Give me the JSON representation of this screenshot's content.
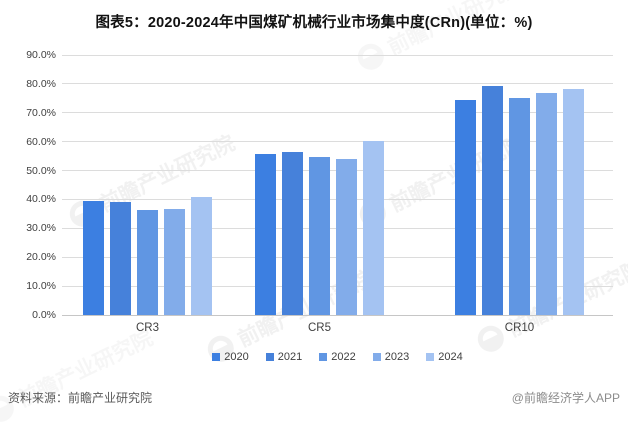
{
  "title": "图表5：2020-2024年中国煤矿机械行业市场集中度(CRn)(单位：%)",
  "footer": {
    "source_note": "资料来源：前瞻产业研究院",
    "brand_credit": "@前瞻经济学人APP"
  },
  "watermark": {
    "text": "前瞻产业研究院"
  },
  "chart_data": {
    "type": "bar",
    "title": "图表5：2020-2024年中国煤矿机械行业市场集中度(CRn)(单位：%)",
    "categories": [
      "CR3",
      "CR5",
      "CR10"
    ],
    "series": [
      {
        "name": "2020",
        "color": "#3C7FE1",
        "values": [
          39.4,
          55.7,
          74.5
        ]
      },
      {
        "name": "2021",
        "color": "#4681DA",
        "values": [
          39.0,
          56.5,
          79.4
        ]
      },
      {
        "name": "2022",
        "color": "#6096E3",
        "values": [
          36.4,
          54.7,
          75.2
        ]
      },
      {
        "name": "2023",
        "color": "#82ACEA",
        "values": [
          36.7,
          54.0,
          76.8
        ]
      },
      {
        "name": "2024",
        "color": "#A4C3F2",
        "values": [
          40.9,
          60.2,
          78.1
        ]
      }
    ],
    "xlabel": "",
    "ylabel": "",
    "ylim": [
      0,
      90
    ],
    "yticks": [
      "0.0%",
      "10.0%",
      "20.0%",
      "30.0%",
      "40.0%",
      "50.0%",
      "60.0%",
      "70.0%",
      "80.0%",
      "90.0%"
    ],
    "grid": true,
    "legend_position": "bottom"
  }
}
